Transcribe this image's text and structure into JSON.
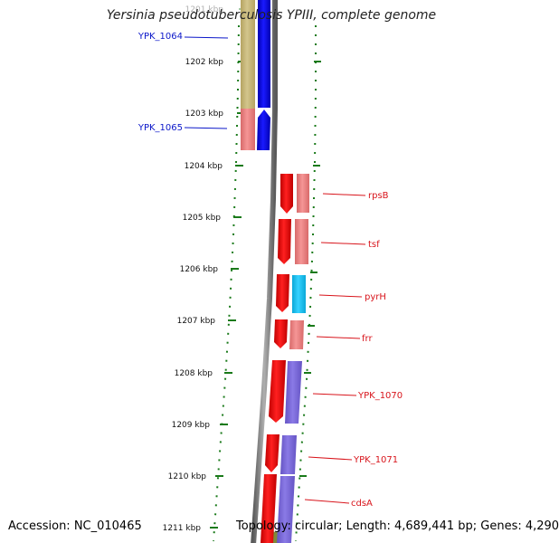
{
  "title": "Yersinia pseudotuberculosis YPIII, complete genome",
  "ruler_ticks": [
    {
      "label": "1201 kbp",
      "faded": true
    },
    {
      "label": "1202 kbp"
    },
    {
      "label": "1203 kbp"
    },
    {
      "label": "1204 kbp"
    },
    {
      "label": "1205 kbp"
    },
    {
      "label": "1206 kbp"
    },
    {
      "label": "1207 kbp"
    },
    {
      "label": "1208 kbp"
    },
    {
      "label": "1209 kbp"
    },
    {
      "label": "1210 kbp"
    },
    {
      "label": "1211 kbp"
    }
  ],
  "genes": [
    {
      "name": "YPK_1064",
      "strand": "minus",
      "label_color": "#0b17c9"
    },
    {
      "name": "YPK_1065",
      "strand": "minus",
      "label_color": "#0b17c9"
    },
    {
      "name": "rpsB",
      "strand": "plus",
      "label_color": "#d8141b"
    },
    {
      "name": "tsf",
      "strand": "plus",
      "label_color": "#d8141b"
    },
    {
      "name": "pyrH",
      "strand": "plus",
      "label_color": "#d8141b"
    },
    {
      "name": "frr",
      "strand": "plus",
      "label_color": "#d8141b"
    },
    {
      "name": "YPK_1070",
      "strand": "plus",
      "label_color": "#d8141b"
    },
    {
      "name": "YPK_1071",
      "strand": "plus",
      "label_color": "#d8141b"
    },
    {
      "name": "cdsA",
      "strand": "plus",
      "label_color": "#d8141b"
    }
  ],
  "colors": {
    "minus_strand": "#0000e8",
    "plus_strand": "#ee1111",
    "cog_olive": "#c9b978",
    "cog_salmon": "#ee8080",
    "cog_cyan": "#1fc4f0",
    "cog_purple": "#7b68d8",
    "backbone": "#808080",
    "gc_dots": "#1a7a1a",
    "ruler_ticks": "#1a7a1a"
  },
  "footer": {
    "accession": "Accession: NC_010465",
    "topology": "Topology: circular; Length: 4,689,441 bp; Genes: 4,290"
  }
}
